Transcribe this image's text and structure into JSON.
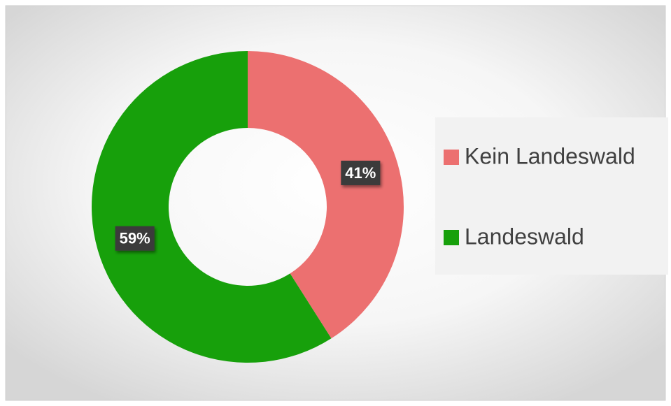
{
  "chart_data": {
    "type": "donut",
    "categories": [
      "Kein Landeswald",
      "Landeswald"
    ],
    "values": [
      41,
      59
    ],
    "value_labels": [
      "41%",
      "59%"
    ],
    "colors": [
      "#ec7070",
      "#17a00b"
    ],
    "legend": "right"
  }
}
